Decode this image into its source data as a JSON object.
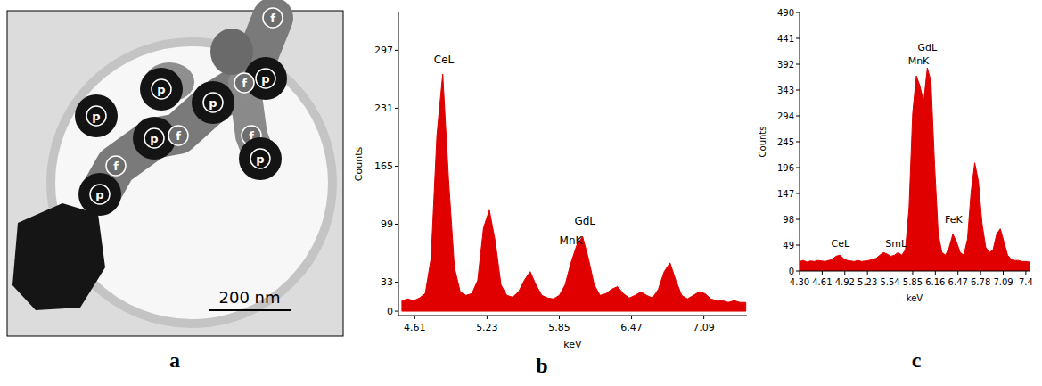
{
  "panel_letters": [
    "a",
    "b",
    "c"
  ],
  "micrograph": {
    "labels": [
      "f",
      "p",
      "p",
      "f",
      "p",
      "f",
      "p",
      "f",
      "p",
      "p",
      "f",
      "p"
    ],
    "scale_bar": "200 nm"
  },
  "chart_data": [
    {
      "type": "area",
      "x_label": "keV",
      "y_label": "Counts",
      "color": "#e00000",
      "x": [
        4.5,
        4.55,
        4.6,
        4.65,
        4.7,
        4.75,
        4.8,
        4.85,
        4.9,
        4.95,
        5.0,
        5.05,
        5.1,
        5.15,
        5.2,
        5.25,
        5.3,
        5.35,
        5.4,
        5.45,
        5.5,
        5.55,
        5.6,
        5.65,
        5.7,
        5.75,
        5.8,
        5.85,
        5.9,
        5.95,
        6.0,
        6.05,
        6.1,
        6.15,
        6.2,
        6.25,
        6.3,
        6.35,
        6.4,
        6.45,
        6.5,
        6.55,
        6.6,
        6.65,
        6.7,
        6.75,
        6.8,
        6.85,
        6.9,
        6.95,
        7.0,
        7.05,
        7.1,
        7.15,
        7.2,
        7.25,
        7.3,
        7.35,
        7.4,
        7.45
      ],
      "values": [
        12,
        14,
        12,
        15,
        20,
        60,
        200,
        270,
        150,
        50,
        22,
        18,
        20,
        35,
        95,
        115,
        80,
        30,
        18,
        16,
        22,
        35,
        45,
        30,
        18,
        15,
        14,
        18,
        30,
        55,
        75,
        85,
        60,
        30,
        18,
        20,
        25,
        28,
        20,
        15,
        18,
        22,
        18,
        15,
        25,
        45,
        55,
        35,
        18,
        14,
        18,
        22,
        20,
        14,
        12,
        12,
        10,
        12,
        10,
        10
      ],
      "xlim": [
        4.47,
        7.46
      ],
      "ylim": [
        -5,
        340
      ],
      "xticks": [
        4.61,
        5.23,
        5.85,
        6.47,
        7.09
      ],
      "yticks": [
        0,
        33,
        99,
        165,
        231,
        297
      ],
      "annotations": [
        {
          "text": "CeL",
          "x": 4.86,
          "y": 282
        },
        {
          "text": "GdL",
          "x": 6.07,
          "y": 98
        },
        {
          "text": "MnK",
          "x": 5.95,
          "y": 76
        }
      ]
    },
    {
      "type": "area",
      "x_label": "keV",
      "y_label": "Counts",
      "color": "#e00000",
      "x": [
        4.3,
        4.35,
        4.4,
        4.45,
        4.5,
        4.55,
        4.6,
        4.65,
        4.7,
        4.75,
        4.8,
        4.85,
        4.9,
        4.95,
        5.0,
        5.05,
        5.1,
        5.15,
        5.2,
        5.25,
        5.3,
        5.35,
        5.4,
        5.45,
        5.5,
        5.55,
        5.6,
        5.65,
        5.7,
        5.75,
        5.8,
        5.85,
        5.9,
        5.95,
        6.0,
        6.05,
        6.1,
        6.15,
        6.2,
        6.25,
        6.3,
        6.35,
        6.4,
        6.45,
        6.5,
        6.55,
        6.6,
        6.65,
        6.7,
        6.75,
        6.8,
        6.85,
        6.9,
        6.95,
        7.0,
        7.05,
        7.1,
        7.15,
        7.2,
        7.25,
        7.3,
        7.35,
        7.4,
        7.45
      ],
      "values": [
        18,
        20,
        17,
        19,
        18,
        20,
        19,
        18,
        20,
        22,
        28,
        30,
        24,
        20,
        19,
        18,
        20,
        18,
        19,
        20,
        22,
        24,
        30,
        35,
        32,
        28,
        30,
        35,
        30,
        40,
        120,
        300,
        370,
        350,
        320,
        385,
        360,
        200,
        70,
        35,
        30,
        45,
        70,
        55,
        35,
        30,
        60,
        150,
        205,
        170,
        90,
        45,
        35,
        40,
        70,
        80,
        55,
        30,
        22,
        20,
        20,
        18,
        18,
        17
      ],
      "xlim": [
        4.3,
        7.45
      ],
      "ylim": [
        0,
        490
      ],
      "xticks": [
        {
          "value": 4.3,
          "label": "4.30"
        },
        4.61,
        4.92,
        5.23,
        5.54,
        5.85,
        6.16,
        6.47,
        6.78,
        7.09,
        7.4
      ],
      "yticks": [
        0,
        49,
        98,
        147,
        196,
        245,
        294,
        343,
        392,
        441,
        490
      ],
      "annotations": [
        {
          "text": "CeL",
          "x": 4.86,
          "y": 45
        },
        {
          "text": "SmL",
          "x": 5.62,
          "y": 45
        },
        {
          "text": "MnK",
          "x": 5.93,
          "y": 392
        },
        {
          "text": "GdL",
          "x": 6.05,
          "y": 418
        },
        {
          "text": "FeK",
          "x": 6.41,
          "y": 92
        }
      ]
    }
  ]
}
